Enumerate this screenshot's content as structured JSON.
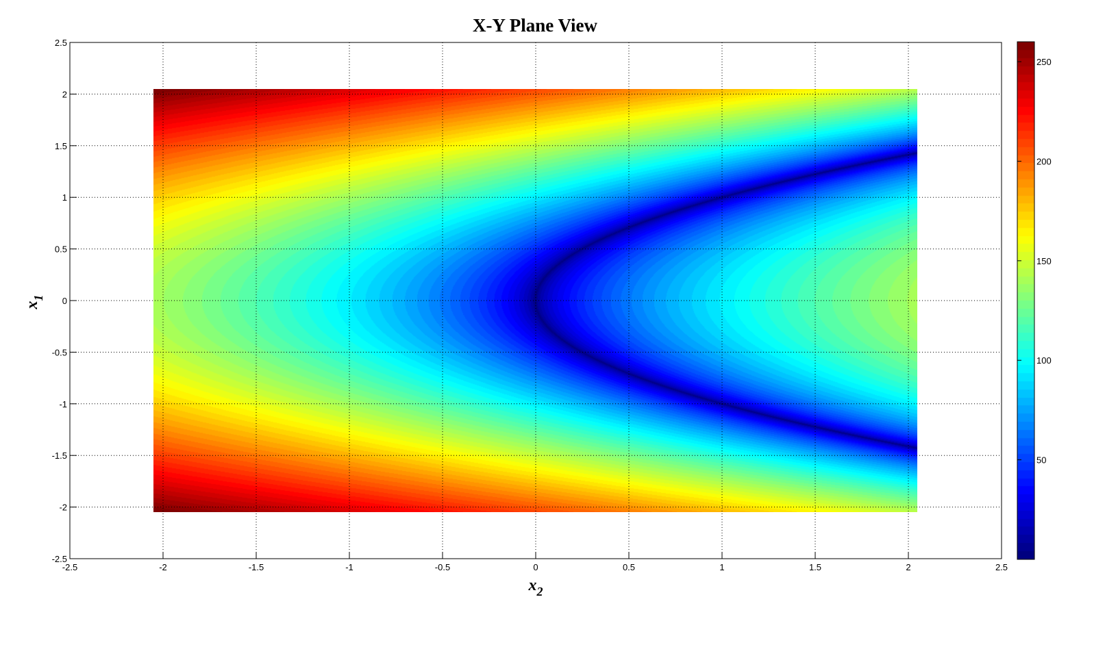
{
  "chart_data": {
    "type": "heatmap",
    "title": "X-Y Plane View",
    "xlabel": {
      "base": "x",
      "sub": "2"
    },
    "ylabel": {
      "base": "x",
      "sub": "1"
    },
    "xlim": [
      -2.5,
      2.5
    ],
    "ylim": [
      -2.5,
      2.5
    ],
    "data_extent": {
      "x": [
        -2.05,
        2.05
      ],
      "y": [
        -2.05,
        2.05
      ]
    },
    "xticks": [
      "-2.5",
      "-2",
      "-1.5",
      "-1",
      "-0.5",
      "0",
      "0.5",
      "1",
      "1.5",
      "2",
      "2.5"
    ],
    "yticks": [
      "-2.5",
      "-2",
      "-1.5",
      "-1",
      "-0.5",
      "0",
      "0.5",
      "1",
      "1.5",
      "2",
      "2.5"
    ],
    "grid": true,
    "colormap": "jet",
    "color_levels": 64,
    "clim": [
      0,
      260
    ],
    "colorbar_ticks": [
      "50",
      "100",
      "150",
      "200",
      "250"
    ],
    "surface": "valley along x2 = x1^2; value rises with distance |x2 - x1^2| (≈140 at x1=0, x2=±2.05; ≈260 at corners x1=±2.05, x2=-2.05)"
  }
}
